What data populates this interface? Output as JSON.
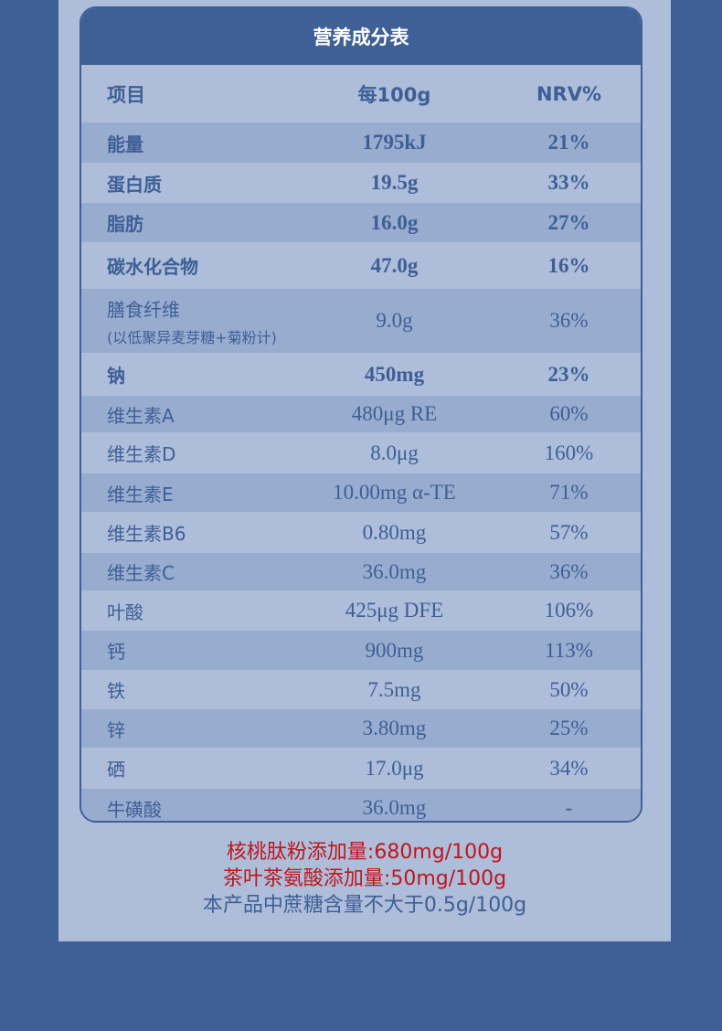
{
  "title": "营养成分表",
  "headers": [
    "项目",
    "每100g",
    "NRV%"
  ],
  "rows": [
    {
      "name": "能量",
      "amount": "1795kJ",
      "nrv": "21%",
      "bold": true
    },
    {
      "name": "蛋白质",
      "amount": "19.5g",
      "nrv": "33%",
      "bold": true
    },
    {
      "name": "脂肪",
      "amount": "16.0g",
      "nrv": "27%",
      "bold": true
    },
    {
      "name": "碳水化合物",
      "amount": "47.0g",
      "nrv": "16%",
      "bold": true
    },
    {
      "name": "膳食纤维",
      "sub": "(以低聚异麦芽糖+菊粉计)",
      "amount": "9.0g",
      "nrv": "36%",
      "bold": false
    },
    {
      "name": "钠",
      "amount": "450mg",
      "nrv": "23%",
      "bold": true
    },
    {
      "name": "维生素A",
      "amount": "480μg RE",
      "nrv": "60%",
      "bold": false
    },
    {
      "name": "维生素D",
      "amount": "8.0μg",
      "nrv": "160%",
      "bold": false
    },
    {
      "name": "维生素E",
      "amount": "10.00mg α-TE",
      "nrv": "71%",
      "bold": false
    },
    {
      "name": "维生素B6",
      "amount": "0.80mg",
      "nrv": "57%",
      "bold": false
    },
    {
      "name": "维生素C",
      "amount": "36.0mg",
      "nrv": "36%",
      "bold": false
    },
    {
      "name": "叶酸",
      "amount": "425μg DFE",
      "nrv": "106%",
      "bold": false
    },
    {
      "name": "钙",
      "amount": "900mg",
      "nrv": "113%",
      "bold": false
    },
    {
      "name": "铁",
      "amount": "7.5mg",
      "nrv": "50%",
      "bold": false
    },
    {
      "name": "锌",
      "amount": "3.80mg",
      "nrv": "25%",
      "bold": false
    },
    {
      "name": "硒",
      "amount": "17.0μg",
      "nrv": "34%",
      "bold": false
    },
    {
      "name": "牛磺酸",
      "amount": "36.0mg",
      "nrv": "-",
      "bold": false
    }
  ],
  "notes": [
    {
      "text": "核桃肽粉添加量:680mg/100g",
      "color": "#c0161a"
    },
    {
      "text": "茶叶茶氨酸添加量:50mg/100g",
      "color": "#c0161a"
    },
    {
      "text": "本产品中蔗糖含量不大于0.5g/100g",
      "color": "#3e5f95"
    }
  ]
}
